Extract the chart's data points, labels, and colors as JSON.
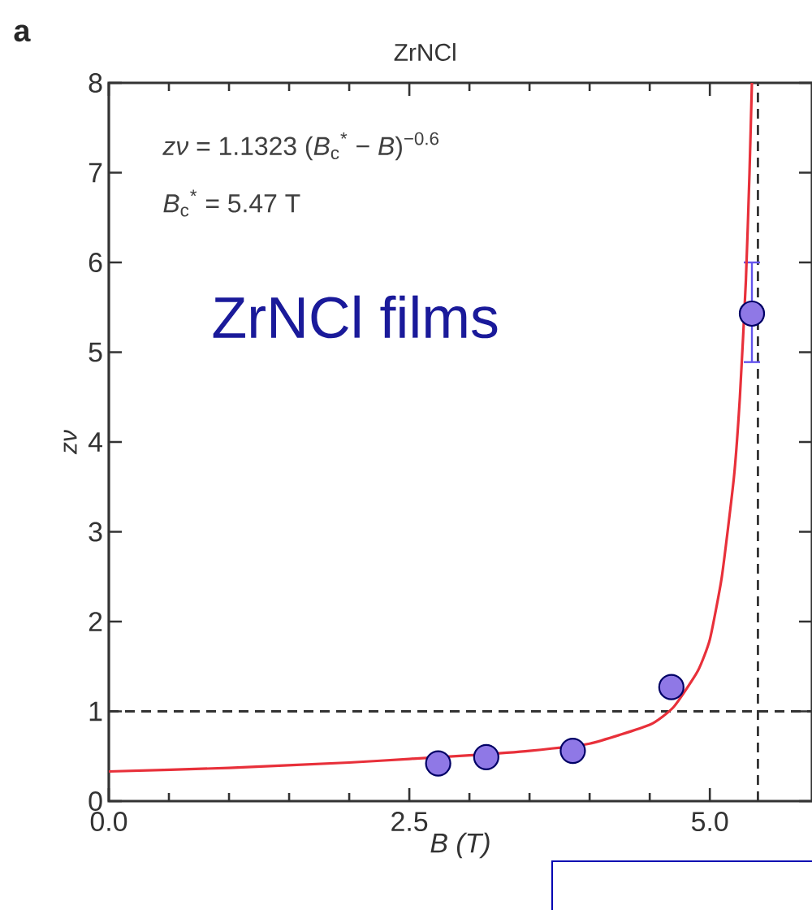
{
  "chart_data": {
    "type": "scatter",
    "title": "ZrNCl",
    "xlabel": "B (T)",
    "ylabel": "zν",
    "annotations": [
      "a",
      "*zν* = 1.1323 (*B*$_{c}$$^{*}$ − *B*)$^{−0.6}$",
      "*B*$_{c}$$^{*}$ = 5.47 T",
      "ZrNCl films"
    ],
    "xlim": [
      0,
      5.85
    ],
    "ylim": [
      0,
      8
    ],
    "xticks": [
      {
        "value": 0,
        "label": "0.0"
      },
      {
        "value": 2.5,
        "label": "2.5"
      },
      {
        "value": 5,
        "label": "5.0"
      }
    ],
    "yticks": [
      0,
      1,
      2,
      3,
      4,
      5,
      6,
      7,
      8
    ],
    "grid": false,
    "ref_lines": [
      {
        "axis": "y",
        "value": 1,
        "color": "#333333",
        "line_style": "dashed"
      },
      {
        "axis": "x",
        "value": 5.4,
        "color": "#333333",
        "line_style": "dashed"
      }
    ],
    "series": [
      {
        "marker": "circle",
        "color": "#8f78e6",
        "x": [
          2.74,
          3.14,
          3.86,
          4.68,
          5.35
        ],
        "values": [
          0.42,
          0.49,
          0.56,
          1.27,
          5.43
        ],
        "errors": [
          null,
          null,
          null,
          null,
          [
            4.89,
            6.0
          ]
        ]
      },
      {
        "type": "line",
        "marker": "none",
        "color": "#e8303a",
        "x": [
          0,
          1,
          2,
          2.5,
          3,
          3.5,
          4,
          4.5,
          4.7,
          4.9,
          5.0,
          5.1,
          5.2,
          5.25,
          5.3,
          5.33,
          5.35
        ],
        "values": [
          0.33,
          0.37,
          0.43,
          0.47,
          0.51,
          0.56,
          0.64,
          0.85,
          1.05,
          1.45,
          1.8,
          2.5,
          3.6,
          4.5,
          5.8,
          7,
          8
        ]
      }
    ]
  }
}
